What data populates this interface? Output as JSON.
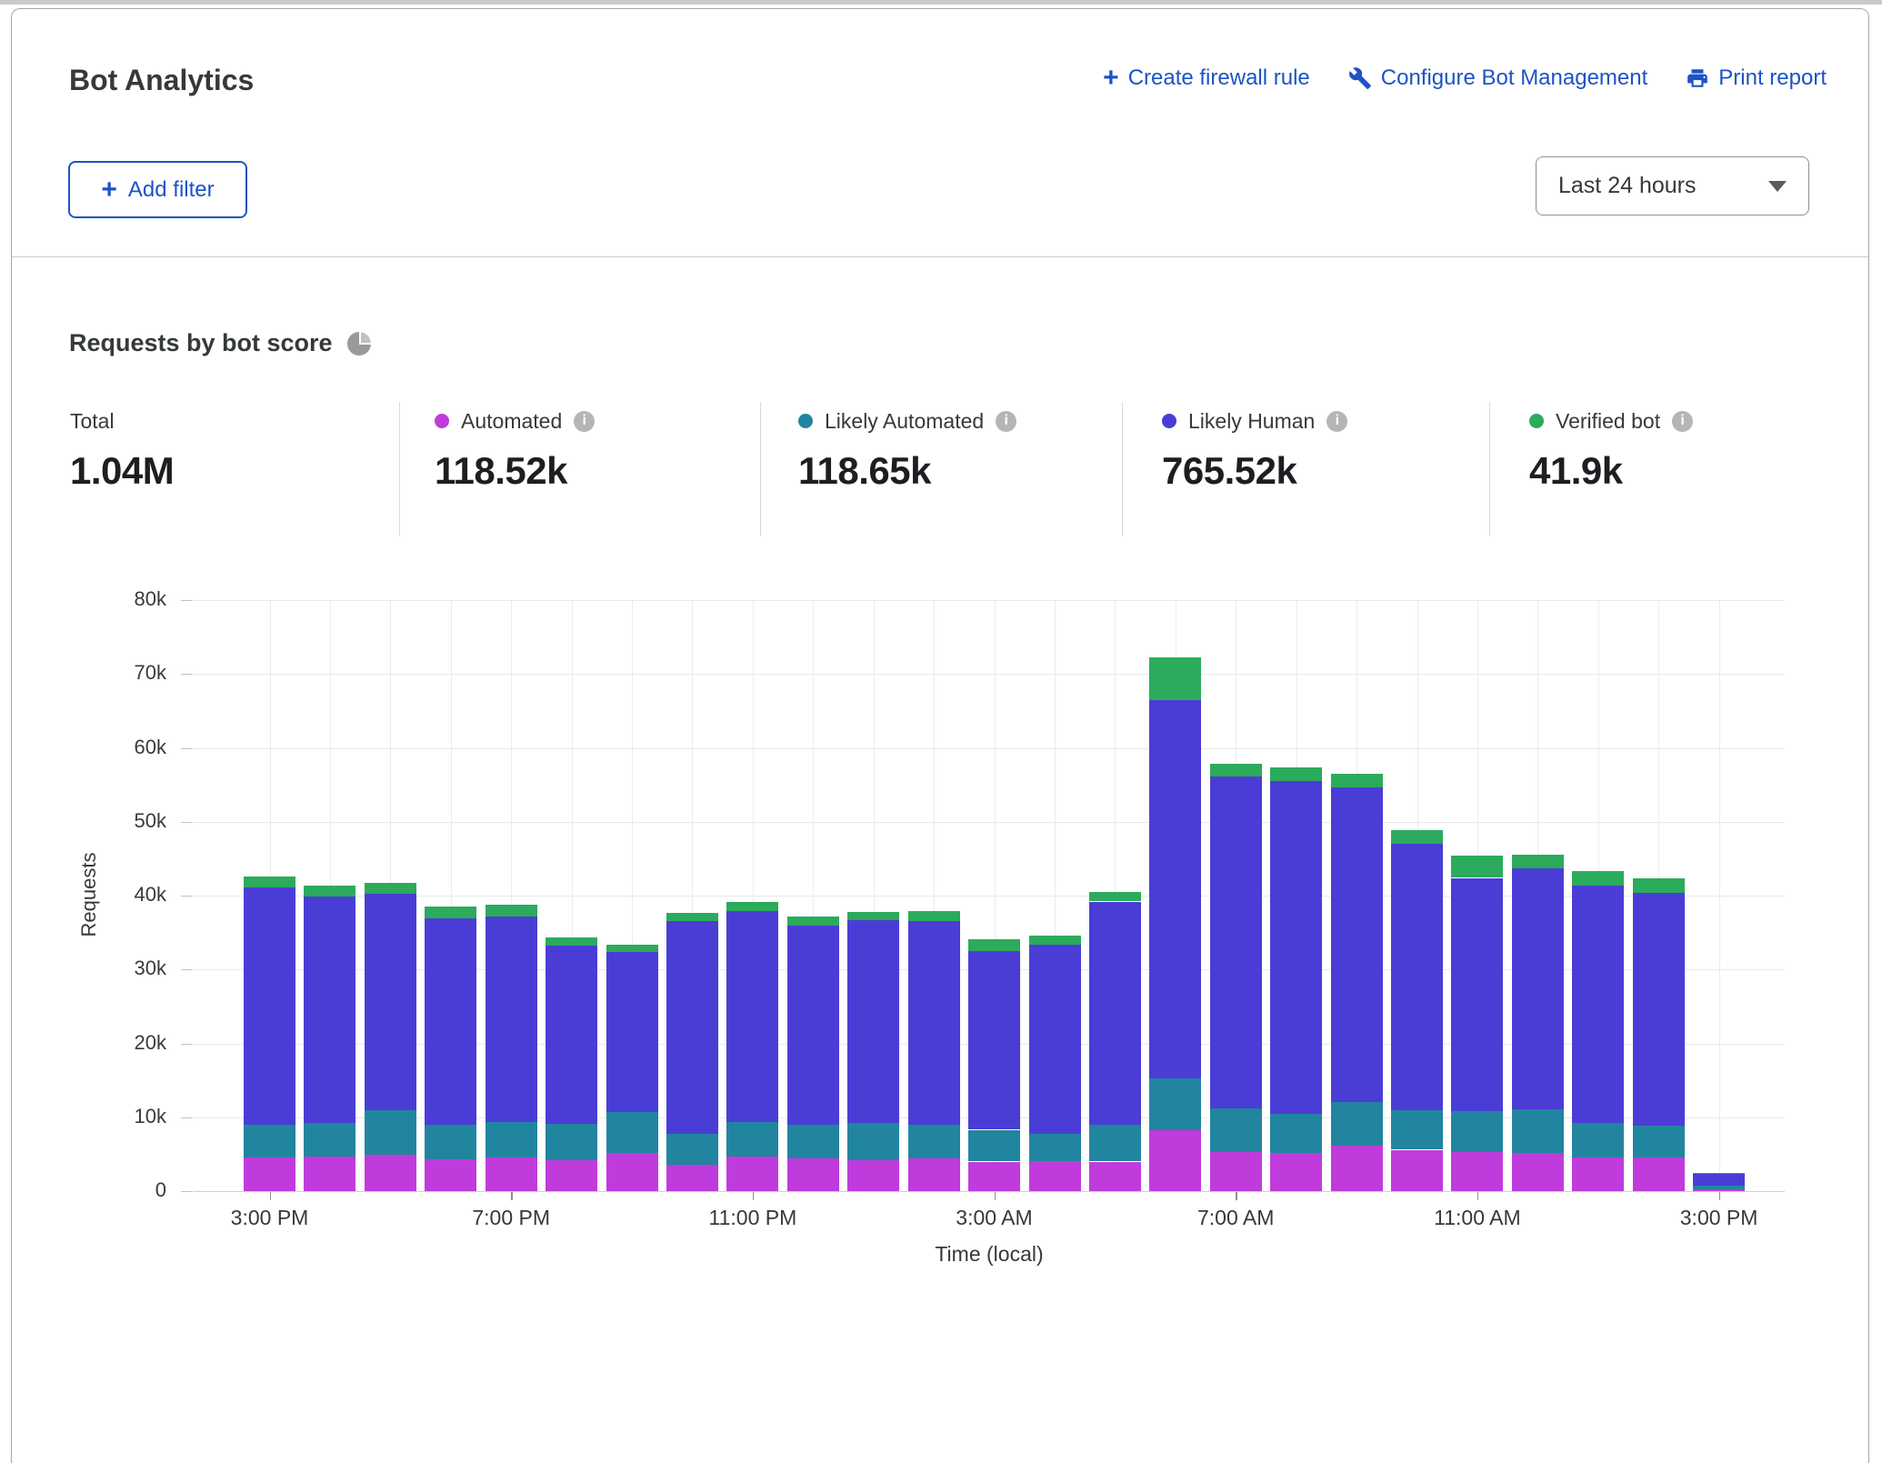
{
  "page": {
    "title": "Bot Analytics",
    "actions": {
      "create_rule": "Create firewall rule",
      "configure": "Configure Bot Management",
      "print": "Print report"
    },
    "add_filter_label": "Add filter",
    "time_range_selected": "Last 24 hours"
  },
  "section": {
    "title": "Requests by bot score"
  },
  "stats": [
    {
      "label": "Total",
      "value": "1.04M",
      "color": null
    },
    {
      "label": "Automated",
      "value": "118.52k",
      "color": "#c03bdb"
    },
    {
      "label": "Likely Automated",
      "value": "118.65k",
      "color": "#2185a0"
    },
    {
      "label": "Likely Human",
      "value": "765.52k",
      "color": "#4a3dd6"
    },
    {
      "label": "Verified bot",
      "value": "41.9k",
      "color": "#2bab5b"
    }
  ],
  "chart_data": {
    "type": "bar",
    "stacked": true,
    "title": "Requests by bot score",
    "xlabel": "Time (local)",
    "ylabel": "Requests",
    "ylim": [
      0,
      80000
    ],
    "grid": true,
    "yticks": [
      0,
      10000,
      20000,
      30000,
      40000,
      50000,
      60000,
      70000,
      80000
    ],
    "ytick_labels": [
      "0",
      "10k",
      "20k",
      "30k",
      "40k",
      "50k",
      "60k",
      "70k",
      "80k"
    ],
    "categories": [
      "3:00 PM",
      "4:00 PM",
      "5:00 PM",
      "6:00 PM",
      "7:00 PM",
      "8:00 PM",
      "9:00 PM",
      "10:00 PM",
      "11:00 PM",
      "12:00 AM",
      "1:00 AM",
      "2:00 AM",
      "3:00 AM",
      "4:00 AM",
      "5:00 AM",
      "6:00 AM",
      "7:00 AM",
      "8:00 AM",
      "9:00 AM",
      "10:00 AM",
      "11:00 AM",
      "12:00 PM",
      "1:00 PM",
      "2:00 PM",
      "3:00 PM"
    ],
    "xticks_shown": [
      {
        "i": 0,
        "label": "3:00 PM"
      },
      {
        "i": 4,
        "label": "7:00 PM"
      },
      {
        "i": 8,
        "label": "11:00 PM"
      },
      {
        "i": 12,
        "label": "3:00 AM"
      },
      {
        "i": 16,
        "label": "7:00 AM"
      },
      {
        "i": 20,
        "label": "11:00 AM"
      },
      {
        "i": 24,
        "label": "3:00 PM"
      }
    ],
    "series": [
      {
        "name": "Automated",
        "color": "#c03bdb",
        "values": [
          4600,
          4700,
          4900,
          4300,
          4500,
          4200,
          5200,
          3600,
          4700,
          4400,
          4200,
          4400,
          4000,
          4100,
          4000,
          8300,
          5300,
          5200,
          6200,
          5600,
          5300,
          5200,
          4500,
          4500,
          300
        ]
      },
      {
        "name": "Likely Automated",
        "color": "#2185a0",
        "values": [
          4400,
          4500,
          6100,
          4700,
          4800,
          4900,
          5500,
          4200,
          4700,
          4600,
          5000,
          4600,
          4300,
          3600,
          5000,
          7000,
          5900,
          5300,
          5900,
          5300,
          5500,
          5900,
          4700,
          4400,
          400
        ]
      },
      {
        "name": "Likely Human",
        "color": "#4a3dd6",
        "values": [
          32100,
          30700,
          29200,
          27900,
          27900,
          24100,
          21700,
          28700,
          28500,
          26900,
          27500,
          27600,
          24200,
          25600,
          30200,
          51200,
          44900,
          45000,
          42500,
          36100,
          31600,
          32600,
          32200,
          31500,
          1700
        ]
      },
      {
        "name": "Verified bot",
        "color": "#2bab5b",
        "values": [
          1500,
          1400,
          1500,
          1600,
          1600,
          1100,
          1000,
          1200,
          1200,
          1300,
          1100,
          1300,
          1600,
          1300,
          1300,
          5800,
          1700,
          1800,
          1900,
          1900,
          3000,
          1900,
          1900,
          1900,
          100
        ]
      }
    ],
    "totals_legend": {
      "total": 1040000,
      "automated": 118520,
      "likely_automated": 118650,
      "likely_human": 765520,
      "verified_bot": 41900
    }
  }
}
